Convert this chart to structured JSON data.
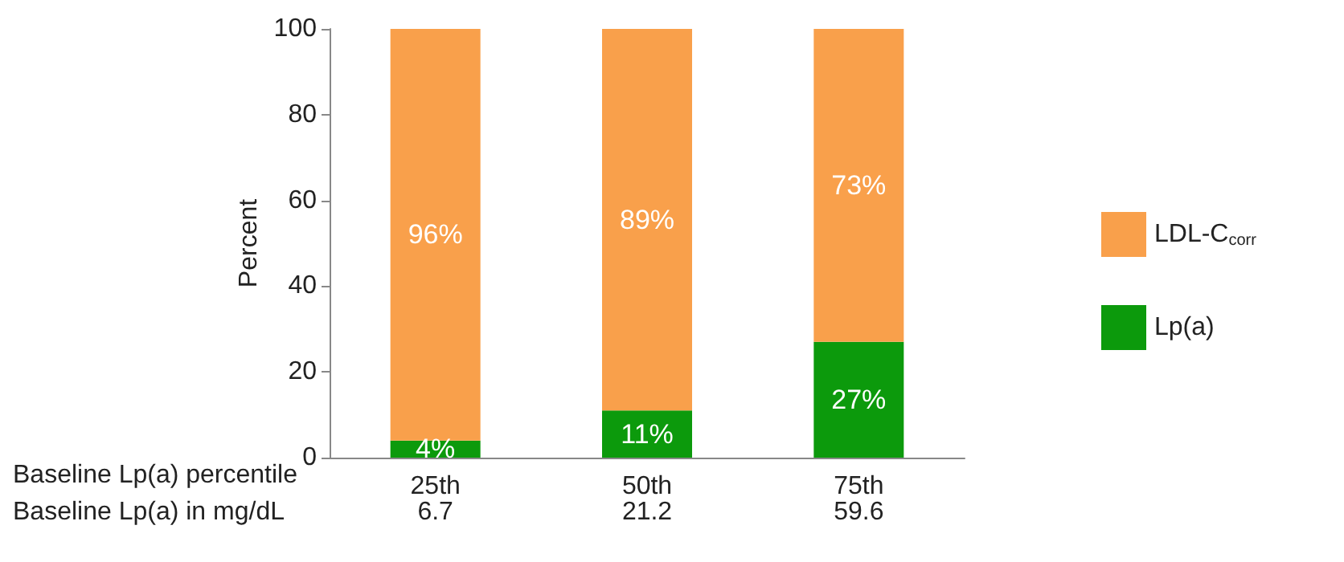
{
  "chart_data": {
    "type": "bar",
    "stacked": true,
    "ylabel": "Percent",
    "categories": [
      "25th",
      "50th",
      "75th"
    ],
    "series": [
      {
        "name": "Lp(a)",
        "color": "#0c9a0c",
        "values": [
          4,
          11,
          27
        ],
        "value_labels": [
          "4%",
          "11%",
          "27%"
        ]
      },
      {
        "name": "LDL-C$_{corr}$",
        "color": "#f9a04b",
        "values": [
          96,
          89,
          73
        ],
        "value_labels": [
          "96%",
          "89%",
          "73%"
        ]
      }
    ],
    "ylim": [
      0,
      100
    ],
    "yticks": [
      0,
      20,
      40,
      60,
      80,
      100
    ],
    "grid": false,
    "legend": "right",
    "annotations": [
      "Baseline Lp(a) percentile",
      "Baseline Lp(a) in mg/dL",
      "6.7",
      "21.2",
      "59.6"
    ]
  }
}
